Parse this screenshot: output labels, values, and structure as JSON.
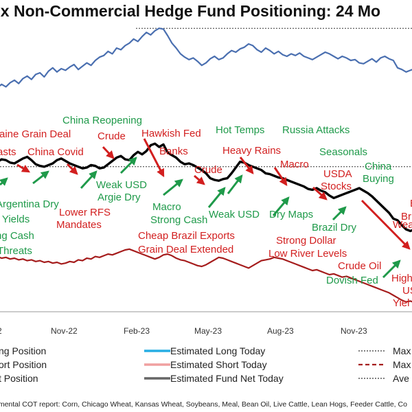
{
  "title": "ex Non-Commercial Hedge Fund Positioning: 24 Mo",
  "footer": "emental COT report: Corn, Chicago Wheat, Kansas Wheat, Soybeans, Meal, Bean Oil, Live Cattle, Lean Hogs, Feeder Cattle, Co",
  "colors": {
    "long": "#4a6fb0",
    "short": "#a51c1c",
    "net": "#000000",
    "red_text": "#d21f1f",
    "green_text": "#1f9a4a",
    "est_long": "#27aee4",
    "est_short": "#f0a0a0",
    "est_net": "#666666"
  },
  "chart_data": {
    "type": "line",
    "title": "ex Non-Commercial Hedge Fund Positioning: 24 Mo",
    "x_ticks": [
      "2",
      "Nov-22",
      "Feb-23",
      "May-23",
      "Aug-23",
      "Nov-23"
    ],
    "series": [
      {
        "name": "ng Position",
        "values": [
          120,
          122,
          126,
          123,
          128,
          131,
          127,
          133,
          136,
          132,
          138,
          140,
          135,
          142,
          146,
          141,
          145,
          143,
          147,
          150,
          144,
          148,
          152,
          149,
          155,
          159,
          161,
          166,
          163,
          170,
          168,
          173,
          176,
          181,
          178,
          184,
          189,
          186,
          191,
          194,
          193,
          185,
          176,
          170,
          163,
          159,
          156,
          158,
          154,
          149,
          152,
          157,
          160,
          156,
          158,
          163,
          167,
          165,
          169,
          171,
          175,
          173,
          168,
          165,
          170,
          167,
          163,
          166,
          162,
          160,
          163,
          161,
          164,
          160,
          158,
          156,
          159,
          162,
          165,
          163,
          160,
          157,
          160,
          158,
          155,
          156,
          152,
          151,
          154,
          157,
          153,
          158,
          160,
          157,
          155,
          146,
          144,
          141,
          143,
          145,
          147
        ]
      },
      {
        "name": "ort Position",
        "values": [
          -84,
          -83,
          -85,
          -84,
          -86,
          -85,
          -87,
          -86,
          -88,
          -87,
          -89,
          -88,
          -90,
          -89,
          -91,
          -90,
          -92,
          -91,
          -89,
          -90,
          -87,
          -88,
          -85,
          -86,
          -83,
          -84,
          -82,
          -80,
          -81,
          -79,
          -77,
          -75,
          -74,
          -76,
          -78,
          -80,
          -82,
          -84,
          -86,
          -84,
          -81,
          -80,
          -82,
          -85,
          -87,
          -88,
          -90,
          -92,
          -94,
          -95,
          -93,
          -90,
          -87,
          -84,
          -85,
          -87,
          -89,
          -91,
          -93,
          -95,
          -97,
          -94,
          -91,
          -88,
          -87,
          -86,
          -84,
          -85,
          -86,
          -88,
          -90,
          -92,
          -94,
          -96,
          -98,
          -100,
          -99,
          -101,
          -103,
          -105,
          -104,
          -106,
          -108,
          -107,
          -109,
          -111,
          -113,
          -115,
          -117,
          -119,
          -121,
          -123,
          -125,
          -127,
          -130,
          -133,
          -136,
          -138,
          -137,
          -139,
          -141
        ]
      },
      {
        "name": "t Position",
        "values": [
          30,
          32,
          35,
          34,
          31,
          30,
          33,
          36,
          38,
          34,
          29,
          27,
          26,
          28,
          30,
          34,
          36,
          33,
          30,
          28,
          26,
          24,
          25,
          28,
          27,
          24,
          25,
          29,
          33,
          37,
          39,
          35,
          34,
          40,
          44,
          41,
          45,
          52,
          54,
          50,
          53,
          43,
          40,
          37,
          32,
          29,
          30,
          28,
          25,
          22,
          18,
          12,
          10,
          9,
          11,
          12,
          18,
          25,
          32,
          31,
          28,
          26,
          24,
          22,
          18,
          17,
          15,
          13,
          12,
          10,
          8,
          6,
          4,
          2,
          -1,
          -2,
          0,
          -3,
          -5,
          -9,
          -12,
          -10,
          -8,
          -6,
          -4,
          -2,
          0,
          -3,
          -6,
          -10,
          -15,
          -20,
          -25,
          -30,
          -37,
          -39,
          -45,
          -50,
          -52,
          -50,
          -48
        ]
      }
    ],
    "reference_lines": {
      "max_long": 194,
      "max_short": -141,
      "avg_net": 26
    },
    "ylim": [
      -150,
      200
    ],
    "annotations": [
      {
        "text": "raine Grain Deal",
        "color": "red"
      },
      {
        "text": "asts",
        "color": "red"
      },
      {
        "text": "China Covid",
        "color": "red"
      },
      {
        "text": "China Reopening",
        "color": "green"
      },
      {
        "text": "Crude",
        "color": "red"
      },
      {
        "text": "Hawkish Fed",
        "color": "red"
      },
      {
        "text": "Hot Temps",
        "color": "green"
      },
      {
        "text": "Russia Attacks",
        "color": "green"
      },
      {
        "text": "Banks",
        "color": "red"
      },
      {
        "text": "Heavy Rains",
        "color": "red"
      },
      {
        "text": "Seasonals",
        "color": "green"
      },
      {
        "text": "Macro",
        "color": "red"
      },
      {
        "text": "China",
        "color": "green"
      },
      {
        "text": "Buying",
        "color": "green"
      },
      {
        "text": "Crude",
        "color": "red"
      },
      {
        "text": "USDA",
        "color": "red"
      },
      {
        "text": "Stocks",
        "color": "red"
      },
      {
        "text": "Weak USD",
        "color": "green"
      },
      {
        "text": "Argie Dry",
        "color": "green"
      },
      {
        "text": "Argentina Dry",
        "color": "green"
      },
      {
        "text": "r Yields",
        "color": "green"
      },
      {
        "text": "ng Cash",
        "color": "green"
      },
      {
        "text": "Threats",
        "color": "green"
      },
      {
        "text": "Lower RFS",
        "color": "red"
      },
      {
        "text": "Mandates",
        "color": "red"
      },
      {
        "text": "Macro",
        "color": "green"
      },
      {
        "text": "Strong Cash",
        "color": "green"
      },
      {
        "text": "Weak USD",
        "color": "green"
      },
      {
        "text": "Dry Maps",
        "color": "green"
      },
      {
        "text": "Brazil Dry",
        "color": "green"
      },
      {
        "text": "Be",
        "color": "red"
      },
      {
        "text": "Br",
        "color": "red"
      },
      {
        "text": "Wea",
        "color": "red"
      },
      {
        "text": "Cheap Brazil Exports",
        "color": "red"
      },
      {
        "text": "Grain Deal Extended",
        "color": "red"
      },
      {
        "text": "Strong Dollar",
        "color": "red"
      },
      {
        "text": "Low River Levels",
        "color": "red"
      },
      {
        "text": "Crude Oil",
        "color": "red"
      },
      {
        "text": "Dovish Fed",
        "color": "green"
      },
      {
        "text": "High",
        "color": "red"
      },
      {
        "text": "USD",
        "color": "red"
      },
      {
        "text": "Yiel",
        "color": "red"
      }
    ]
  },
  "legend": [
    {
      "label": "ng Position",
      "color": "#4a6fb0",
      "style": "solid"
    },
    {
      "label": "Estimated Long Today",
      "color": "#27aee4",
      "style": "solid"
    },
    {
      "label": "Max",
      "color": "#333333",
      "style": "dotted"
    },
    {
      "label": "ort Position",
      "color": "#a51c1c",
      "style": "solid"
    },
    {
      "label": "Estimated Short Today",
      "color": "#f0a0a0",
      "style": "solid"
    },
    {
      "label": "Max",
      "color": "#a51c1c",
      "style": "dashed"
    },
    {
      "label": "t Position",
      "color": "#000000",
      "style": "solid"
    },
    {
      "label": "Estimated Fund Net Today",
      "color": "#666666",
      "style": "solid"
    },
    {
      "label": "Ave",
      "color": "#333333",
      "style": "dotted"
    }
  ]
}
